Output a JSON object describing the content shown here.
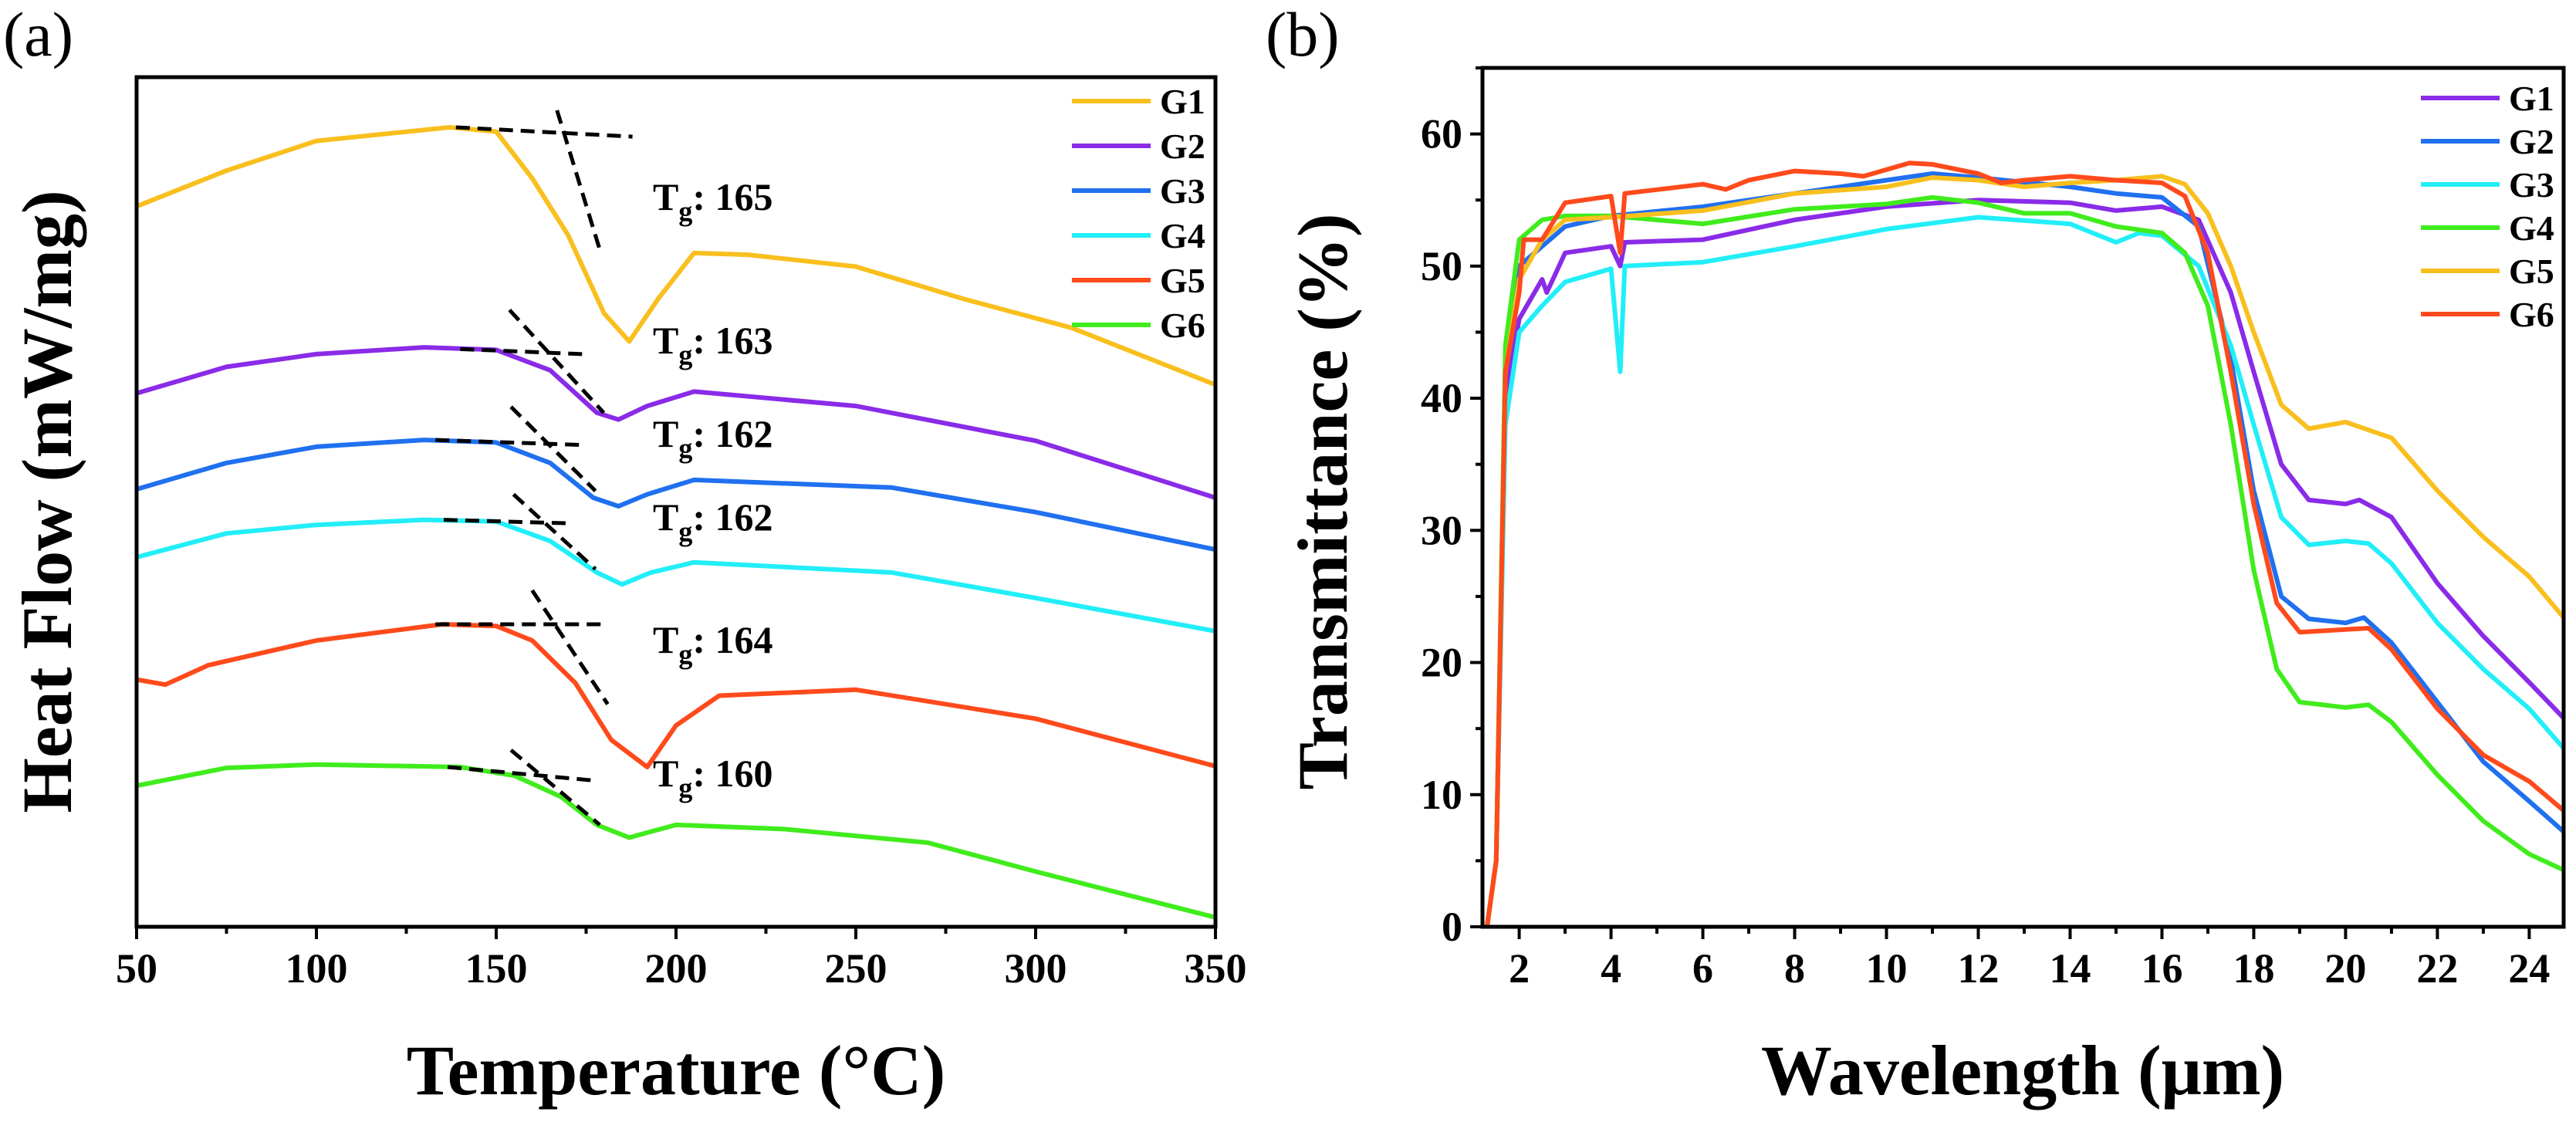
{
  "chart_data": [
    {
      "type": "line",
      "panel_label": "(a)",
      "title": "",
      "xlabel": "Temperature (°C)",
      "ylabel": "Heat Flow (mW/mg)",
      "xlim": [
        50,
        350
      ],
      "ylim": [
        0,
        100
      ],
      "x_ticks": [
        50,
        100,
        150,
        200,
        250,
        300,
        350
      ],
      "x_tick_labels": [
        "50",
        "100",
        "150",
        "200",
        "250",
        "300",
        "350"
      ],
      "y_ticks": [],
      "legend_position": "top-right",
      "series": [
        {
          "name": "G1",
          "color": "#F9BF1E",
          "x": [
            50,
            75,
            100,
            137,
            150,
            160,
            170,
            180,
            187,
            195,
            205,
            220,
            250,
            280,
            310,
            350
          ],
          "y": [
            84.8,
            89,
            92.5,
            94.1,
            93.6,
            88.1,
            81.4,
            72.2,
            68.9,
            73.9,
            79.3,
            79.1,
            77.7,
            73.9,
            70.5,
            63.8
          ]
        },
        {
          "name": "G2",
          "color": "#8A2BE8",
          "x": [
            50,
            75,
            100,
            130,
            150,
            165,
            178,
            184,
            192,
            205,
            250,
            300,
            350
          ],
          "y": [
            62.8,
            65.9,
            67.4,
            68.2,
            67.9,
            65.5,
            60.5,
            59.7,
            61.3,
            63.0,
            61.3,
            57.2,
            50.5
          ]
        },
        {
          "name": "G3",
          "color": "#2070F0",
          "x": [
            50,
            75,
            100,
            130,
            150,
            165,
            177,
            184,
            192,
            205,
            260,
            300,
            350
          ],
          "y": [
            51.5,
            54.6,
            56.5,
            57.3,
            57.0,
            54.6,
            50.5,
            49.5,
            50.9,
            52.6,
            51.7,
            48.8,
            44.4
          ]
        },
        {
          "name": "G4",
          "color": "#22EEF8",
          "x": [
            50,
            75,
            100,
            130,
            150,
            165,
            178,
            185,
            193,
            205,
            260,
            300,
            350
          ],
          "y": [
            43.5,
            46.3,
            47.3,
            47.9,
            47.7,
            45.4,
            41.7,
            40.3,
            41.7,
            42.9,
            41.7,
            38.7,
            34.8
          ]
        },
        {
          "name": "G5",
          "color": "#FF4A1C",
          "x": [
            50,
            58,
            70,
            100,
            135,
            150,
            160,
            172,
            182,
            192,
            200,
            212,
            250,
            300,
            350
          ],
          "y": [
            29.1,
            28.5,
            30.8,
            33.7,
            35.6,
            35.4,
            33.7,
            28.7,
            22.0,
            18.8,
            23.7,
            27.2,
            27.9,
            24.5,
            18.9
          ]
        },
        {
          "name": "G6",
          "color": "#40EC1C",
          "x": [
            50,
            75,
            100,
            140,
            155,
            168,
            178,
            187,
            200,
            230,
            270,
            300,
            350
          ],
          "y": [
            16.6,
            18.7,
            19.1,
            18.8,
            17.8,
            15.3,
            12.0,
            10.5,
            12.0,
            11.5,
            9.9,
            6.5,
            1.1
          ]
        }
      ],
      "tangent_lines": [
        {
          "series": "G1",
          "baseline": [
            [
              138.8,
              94.1
            ],
            [
              187.9,
              93.0
            ]
          ],
          "slope": [
            [
              166.9,
              96.1
            ],
            [
              178.8,
              79.7
            ]
          ]
        },
        {
          "series": "G2",
          "baseline": [
            [
              140,
              68.0
            ],
            [
              174.2,
              67.4
            ]
          ],
          "slope": [
            [
              153.7,
              72.6
            ],
            [
              179.9,
              60.5
            ]
          ]
        },
        {
          "series": "G3",
          "baseline": [
            [
              133.1,
              57.3
            ],
            [
              174.7,
              56.7
            ]
          ],
          "slope": [
            [
              154.1,
              61.2
            ],
            [
              177.6,
              51.3
            ]
          ]
        },
        {
          "series": "G4",
          "baseline": [
            [
              135.4,
              47.9
            ],
            [
              169.6,
              47.5
            ]
          ],
          "slope": [
            [
              154.8,
              50.9
            ],
            [
              177.6,
              42.1
            ]
          ]
        },
        {
          "series": "G5",
          "baseline": [
            [
              133.1,
              35.6
            ],
            [
              179.9,
              35.6
            ]
          ],
          "slope": [
            [
              160,
              39.6
            ],
            [
              181,
              26.2
            ]
          ]
        },
        {
          "series": "G6",
          "baseline": [
            [
              136.5,
              18.8
            ],
            [
              177.6,
              17.2
            ]
          ],
          "slope": [
            [
              154.1,
              20.8
            ],
            [
              178.8,
              12.0
            ]
          ]
        }
      ],
      "annotations": [
        {
          "series": "G1",
          "main": "T",
          "sub": "g",
          "rest": ": 165",
          "tg": 165
        },
        {
          "series": "G2",
          "main": "T",
          "sub": "g",
          "rest": ": 163",
          "tg": 163
        },
        {
          "series": "G3",
          "main": "T",
          "sub": "g",
          "rest": ": 162",
          "tg": 162
        },
        {
          "series": "G4",
          "main": "T",
          "sub": "g",
          "rest": ": 162",
          "tg": 162
        },
        {
          "series": "G5",
          "main": "T",
          "sub": "g",
          "rest": ": 164",
          "tg": 164
        },
        {
          "series": "G6",
          "main": "T",
          "sub": "g",
          "rest": ": 160",
          "tg": 160
        }
      ]
    },
    {
      "type": "line",
      "panel_label": "(b)",
      "title": "",
      "xlabel": "Wavelength (μm)",
      "ylabel": "Transmittance (%)",
      "xlim": [
        1.2,
        24.75
      ],
      "ylim": [
        0,
        65
      ],
      "x_ticks": [
        2,
        4,
        6,
        8,
        10,
        12,
        14,
        16,
        18,
        20,
        22,
        24
      ],
      "x_tick_labels": [
        "2",
        "4",
        "6",
        "8",
        "10",
        "12",
        "14",
        "16",
        "18",
        "20",
        "22",
        "24"
      ],
      "y_ticks": [
        0,
        10,
        20,
        30,
        40,
        50,
        60
      ],
      "y_tick_labels": [
        "0",
        "10",
        "20",
        "30",
        "40",
        "50",
        "60"
      ],
      "legend_position": "top-right",
      "series": [
        {
          "name": "G1",
          "color": "#8A2BE8",
          "x": [
            1.3,
            1.5,
            1.7,
            2,
            2.5,
            2.6,
            3,
            4,
            4.2,
            4.3,
            6,
            8,
            10,
            12,
            14,
            15,
            16,
            16.8,
            17.5,
            18,
            18.6,
            19.2,
            20,
            20.3,
            21,
            22,
            23,
            24,
            24.75
          ],
          "y": [
            0,
            5,
            40,
            46,
            49,
            48,
            51,
            51.5,
            50,
            51.8,
            52,
            53.5,
            54.5,
            55,
            54.8,
            54.2,
            54.5,
            53.5,
            48,
            42,
            35,
            32.3,
            32,
            32.3,
            31,
            26,
            22,
            18.5,
            15.8
          ]
        },
        {
          "name": "G2",
          "color": "#2070F0",
          "x": [
            1.3,
            1.5,
            1.7,
            2,
            3,
            4,
            6,
            8,
            10,
            11,
            12,
            14,
            15,
            16,
            16.8,
            17.5,
            18,
            18.6,
            19.2,
            20,
            20.4,
            21,
            22,
            23,
            24,
            24.75
          ],
          "y": [
            0,
            5,
            42,
            50,
            53,
            53.8,
            54.5,
            55.5,
            56.5,
            57,
            56.7,
            56,
            55.5,
            55.2,
            53,
            43,
            33,
            25,
            23.3,
            23,
            23.4,
            21.5,
            17,
            12.5,
            9.5,
            7.2
          ]
        },
        {
          "name": "G3",
          "color": "#22EEF8",
          "x": [
            1.3,
            1.5,
            1.7,
            2,
            2.5,
            3,
            4,
            4.2,
            4.3,
            6,
            8,
            10,
            12,
            14,
            15,
            15.5,
            16,
            16.8,
            17.5,
            18,
            18.6,
            19.2,
            20,
            20.5,
            21,
            22,
            23,
            24,
            24.75
          ],
          "y": [
            0,
            5,
            38,
            45,
            47,
            48.8,
            49.8,
            42,
            50,
            50.3,
            51.5,
            52.8,
            53.7,
            53.2,
            51.8,
            52.5,
            52.3,
            50,
            44,
            38,
            31,
            28.9,
            29.2,
            29,
            27.5,
            23,
            19.5,
            16.5,
            13.5
          ]
        },
        {
          "name": "G4",
          "color": "#40EC1C",
          "x": [
            1.3,
            1.5,
            1.7,
            2,
            2.5,
            3,
            4,
            6,
            8,
            10,
            11,
            12,
            13,
            14,
            15,
            16,
            16.5,
            17,
            17.5,
            18,
            18.5,
            19,
            20,
            20.5,
            21,
            22,
            23,
            24,
            24.75
          ],
          "y": [
            0,
            5,
            44,
            52,
            53.5,
            53.8,
            53.8,
            53.2,
            54.3,
            54.7,
            55.2,
            54.8,
            54,
            54,
            53,
            52.5,
            51,
            47,
            38,
            27,
            19.5,
            17,
            16.6,
            16.8,
            15.5,
            11.5,
            8,
            5.5,
            4.3
          ]
        },
        {
          "name": "G5",
          "color": "#F9BF1E",
          "x": [
            1.3,
            1.5,
            1.7,
            2,
            2.5,
            3,
            4,
            6,
            8,
            10,
            11,
            12,
            13,
            14,
            15,
            16,
            16.5,
            17,
            17.5,
            18,
            18.6,
            19.2,
            20,
            21,
            22,
            23,
            24,
            24.75
          ],
          "y": [
            0,
            5,
            42,
            49,
            52,
            53.5,
            53.7,
            54.2,
            55.5,
            56,
            56.7,
            56.5,
            56,
            56.3,
            56.5,
            56.8,
            56.2,
            54,
            50,
            45,
            39.5,
            37.7,
            38.2,
            37,
            33,
            29.5,
            26.5,
            23.4
          ]
        },
        {
          "name": "G6",
          "color": "#FF4A1C",
          "x": [
            1.3,
            1.5,
            1.7,
            2,
            2.1,
            2.5,
            3,
            4,
            4.2,
            4.3,
            6,
            6.5,
            7,
            8,
            9,
            9.5,
            10.5,
            11,
            12,
            12.5,
            13,
            14,
            15,
            16,
            16.5,
            17,
            17.5,
            18,
            18.5,
            19,
            20,
            20.5,
            21,
            22,
            23,
            24,
            24.75
          ],
          "y": [
            0,
            5,
            42,
            48,
            52,
            52,
            54.8,
            55.3,
            51,
            55.5,
            56.2,
            55.8,
            56.5,
            57.2,
            57,
            56.8,
            57.8,
            57.7,
            57,
            56.3,
            56.5,
            56.8,
            56.5,
            56.3,
            55.3,
            51,
            42,
            32,
            24.5,
            22.3,
            22.5,
            22.6,
            21,
            16.5,
            13,
            11,
            8.8
          ]
        }
      ]
    }
  ]
}
